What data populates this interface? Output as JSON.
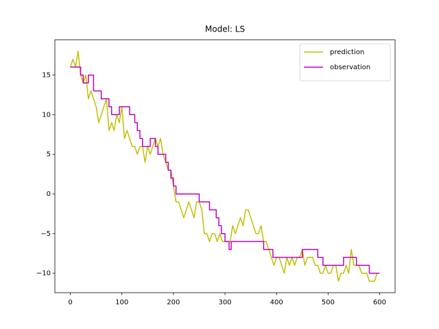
{
  "chart_data": {
    "type": "line",
    "title": "Model: LS",
    "xlim": [
      -30,
      630
    ],
    "ylim": [
      -12.45,
      19.45
    ],
    "xticks": [
      0,
      100,
      200,
      300,
      400,
      500,
      600
    ],
    "yticks": [
      {
        "value": -10,
        "label": "−10"
      },
      {
        "value": -5,
        "label": "−5"
      },
      0,
      5,
      10,
      15
    ],
    "legend": "upper right",
    "series": [
      {
        "name": "prediction",
        "color": "#bfbf00",
        "x": [
          0,
          5,
          10,
          15,
          20,
          25,
          30,
          35,
          40,
          45,
          50,
          55,
          60,
          65,
          70,
          75,
          80,
          85,
          90,
          95,
          100,
          105,
          110,
          115,
          120,
          125,
          130,
          135,
          140,
          145,
          150,
          155,
          160,
          165,
          170,
          175,
          180,
          185,
          190,
          195,
          200,
          205,
          210,
          215,
          220,
          225,
          230,
          235,
          240,
          245,
          250,
          255,
          260,
          265,
          270,
          275,
          280,
          285,
          290,
          295,
          300,
          310,
          315,
          320,
          325,
          330,
          335,
          340,
          345,
          350,
          355,
          360,
          365,
          370,
          375,
          380,
          385,
          390,
          395,
          400,
          405,
          410,
          415,
          420,
          425,
          430,
          435,
          440,
          445,
          450,
          455,
          460,
          465,
          470,
          475,
          480,
          485,
          490,
          495,
          500,
          505,
          510,
          515,
          520,
          525,
          530,
          535,
          540,
          545,
          550,
          555,
          560,
          565,
          570,
          575,
          580,
          585,
          590,
          595
        ],
        "values": [
          16,
          17,
          16,
          18,
          15,
          14,
          15,
          12,
          13,
          12,
          11,
          9,
          10,
          11,
          12,
          8,
          9,
          8,
          10,
          9,
          11,
          7,
          8,
          7,
          6,
          6,
          5,
          6,
          6,
          4,
          6,
          5,
          6,
          7,
          6,
          7,
          5,
          4,
          3,
          3,
          1,
          -1,
          -1,
          -2,
          -3,
          -2,
          -1,
          -2,
          -3,
          -1,
          -1,
          -2,
          -5,
          -5,
          -6,
          -5,
          -5,
          -6,
          -5,
          -6,
          -6,
          -6,
          -4,
          -5,
          -4,
          -3,
          -4,
          -2,
          -2,
          -3,
          -4,
          -5,
          -5,
          -4,
          -6,
          -6,
          -7,
          -8,
          -9,
          -8,
          -8,
          -9,
          -10,
          -8,
          -9,
          -8,
          -9,
          -8,
          -8,
          -7,
          -9,
          -8,
          -8,
          -8,
          -9,
          -9,
          -10,
          -10,
          -9,
          -10,
          -10,
          -9,
          -9,
          -11,
          -10,
          -10,
          -9,
          -10,
          -7,
          -9,
          -9,
          -9,
          -10,
          -10,
          -10,
          -11,
          -11,
          -11,
          -10
        ]
      },
      {
        "name": "observation",
        "color": "#bf00bf",
        "x": [
          0,
          20,
          20,
          25,
          25,
          35,
          35,
          45,
          45,
          60,
          60,
          75,
          75,
          80,
          80,
          95,
          95,
          115,
          115,
          125,
          125,
          130,
          130,
          135,
          135,
          140,
          140,
          155,
          155,
          165,
          165,
          170,
          170,
          185,
          185,
          190,
          190,
          195,
          195,
          200,
          200,
          205,
          205,
          250,
          250,
          270,
          270,
          283,
          283,
          288,
          288,
          293,
          293,
          300,
          300,
          308,
          308,
          312,
          312,
          375,
          375,
          393,
          393,
          450,
          450,
          480,
          480,
          490,
          490,
          530,
          530,
          555,
          555,
          580,
          580,
          600
        ],
        "values": [
          16,
          16,
          15,
          15,
          14,
          14,
          15,
          15,
          13,
          13,
          12,
          12,
          11,
          11,
          10,
          10,
          11,
          11,
          10,
          10,
          9,
          9,
          8,
          8,
          7,
          7,
          6,
          6,
          7,
          7,
          6,
          6,
          5,
          5,
          4,
          4,
          3,
          3,
          2,
          2,
          1,
          1,
          0,
          0,
          -1,
          -1,
          -2,
          -2,
          -3,
          -3,
          -4,
          -4,
          -5,
          -5,
          -6,
          -6,
          -7,
          -7,
          -6,
          -6,
          -7,
          -7,
          -8,
          -8,
          -7,
          -7,
          -8,
          -8,
          -9,
          -9,
          -8,
          -8,
          -9,
          -9,
          -10,
          -10
        ]
      }
    ]
  }
}
